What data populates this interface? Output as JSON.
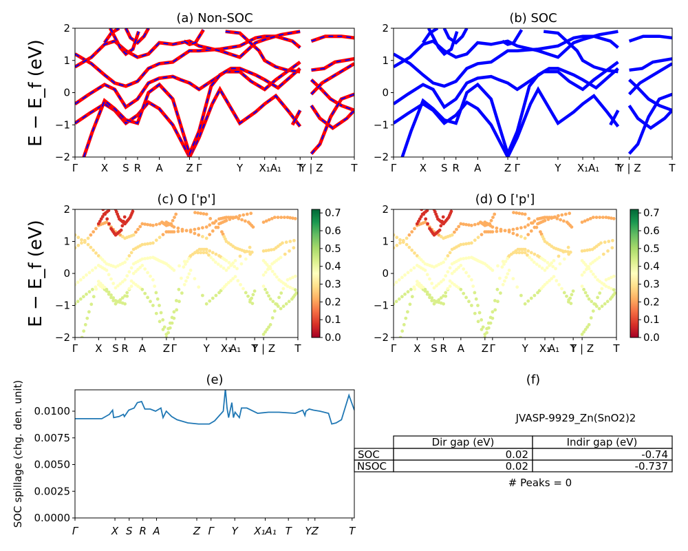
{
  "figure": {
    "ylabel_main": "E − E_f (eV)",
    "ylabel_spillage": "SOC spillage (chg. den. unit)"
  },
  "chart_data": [
    {
      "id": "a",
      "type": "line",
      "title": "(a) Non-SOC",
      "ylim": [
        -2,
        2
      ],
      "yticks": [
        "2",
        "1",
        "0",
        "−1",
        "−2"
      ],
      "xticks": [
        "Γ",
        "X",
        "S",
        "R",
        "A",
        "Z",
        "Γ",
        "Y",
        "X₁",
        "A₁",
        "T",
        "Y | Z",
        "T"
      ],
      "series": [
        {
          "color": "#ff0000",
          "style": "solid"
        },
        {
          "color": "#0000ff",
          "style": "dashed"
        }
      ]
    },
    {
      "id": "b",
      "type": "line",
      "title": "(b) SOC",
      "ylim": [
        -2,
        2
      ],
      "yticks": [
        "2",
        "1",
        "0",
        "−1",
        "−2"
      ],
      "xticks": [
        "Γ",
        "X",
        "S",
        "R",
        "A",
        "Z",
        "Γ",
        "Y",
        "X₁",
        "A₁",
        "T",
        "Y | Z",
        "T"
      ],
      "series": [
        {
          "color": "#0000ff",
          "style": "solid"
        }
      ]
    },
    {
      "id": "c",
      "type": "scatter",
      "title": "(c)  O ['p']",
      "ylim": [
        -2,
        2
      ],
      "yticks": [
        "2",
        "1",
        "0",
        "−1",
        "−2"
      ],
      "xticks": [
        "Γ",
        "X",
        "S",
        "R",
        "A",
        "Z",
        "Γ",
        "Y",
        "X₁",
        "A₁",
        "T",
        "Y | Z",
        "T"
      ],
      "colorbar": {
        "min": 0.0,
        "max": 0.72,
        "ticks": [
          "0.7",
          "0.6",
          "0.5",
          "0.4",
          "0.3",
          "0.2",
          "0.1",
          "0.0"
        ],
        "cmap": "RdYlGn"
      }
    },
    {
      "id": "d",
      "type": "scatter",
      "title": "(d) O ['p']",
      "ylim": [
        -2,
        2
      ],
      "yticks": [
        "2",
        "1",
        "0",
        "−1",
        "−2"
      ],
      "xticks": [
        "Γ",
        "X",
        "S",
        "R",
        "A",
        "Z",
        "Γ",
        "Y",
        "X₁",
        "A₁",
        "T",
        "Y | Z",
        "T"
      ],
      "colorbar": {
        "min": 0.0,
        "max": 0.72,
        "ticks": [
          "0.7",
          "0.6",
          "0.5",
          "0.4",
          "0.3",
          "0.2",
          "0.1",
          "0.0"
        ],
        "cmap": "RdYlGn"
      }
    },
    {
      "id": "e",
      "type": "line",
      "title": "(e)",
      "ylabel": "SOC spillage (chg. den. unit)",
      "ylim": [
        0,
        0.012
      ],
      "yticks": [
        "0.0100",
        "0.0075",
        "0.0050",
        "0.0025",
        "0.0000"
      ],
      "xticks": [
        "Γ",
        "X",
        "S",
        "R",
        "A",
        "Z",
        "Γ",
        "Y",
        "X₁A₁",
        "T",
        "Y",
        "Z",
        "T"
      ],
      "series": [
        {
          "color": "#1f77b4",
          "x": [
            0,
            2.5,
            3.2,
            3.5,
            3.6,
            4.1,
            4.5,
            4.6,
            5.0,
            5.5,
            5.8,
            6.2,
            6.5,
            7.0,
            7.5,
            8.0,
            8.2,
            8.5,
            9.0,
            9.5,
            10.5,
            11.5,
            12.5,
            13.0,
            13.8,
            14.0,
            14.15,
            14.3,
            14.6,
            14.75,
            14.9,
            15.3,
            15.5,
            16.0,
            17.0,
            18.0,
            19.0,
            20.5,
            21.2,
            21.4,
            21.5,
            21.8,
            22.2,
            22.8,
            23.6,
            23.9,
            24.3,
            24.8,
            25.5,
            26.0
          ],
          "y": [
            0.0093,
            0.0093,
            0.0097,
            0.0101,
            0.0094,
            0.0095,
            0.0097,
            0.0095,
            0.0101,
            0.0103,
            0.0108,
            0.0109,
            0.0102,
            0.0102,
            0.01,
            0.0103,
            0.0094,
            0.01,
            0.0095,
            0.0092,
            0.0089,
            0.0088,
            0.0088,
            0.0091,
            0.01,
            0.0121,
            0.0103,
            0.0094,
            0.0108,
            0.0094,
            0.0099,
            0.0094,
            0.0103,
            0.0103,
            0.0098,
            0.0099,
            0.0099,
            0.0098,
            0.0101,
            0.0096,
            0.01,
            0.0102,
            0.0101,
            0.01,
            0.0098,
            0.0088,
            0.0089,
            0.0092,
            0.0115,
            0.0101
          ]
        }
      ]
    }
  ],
  "panel_f": {
    "title": "(f)",
    "material": "JVASP-9929_Zn(SnO2)2",
    "table": {
      "headers": [
        "Dir gap (eV)",
        "Indir gap (eV)"
      ],
      "rows": [
        {
          "label": "SOC",
          "dir": "0.02",
          "indir": "-0.74"
        },
        {
          "label": "NSOC",
          "dir": "0.02",
          "indir": "-0.737"
        }
      ]
    },
    "peaks": "# Peaks = 0"
  }
}
